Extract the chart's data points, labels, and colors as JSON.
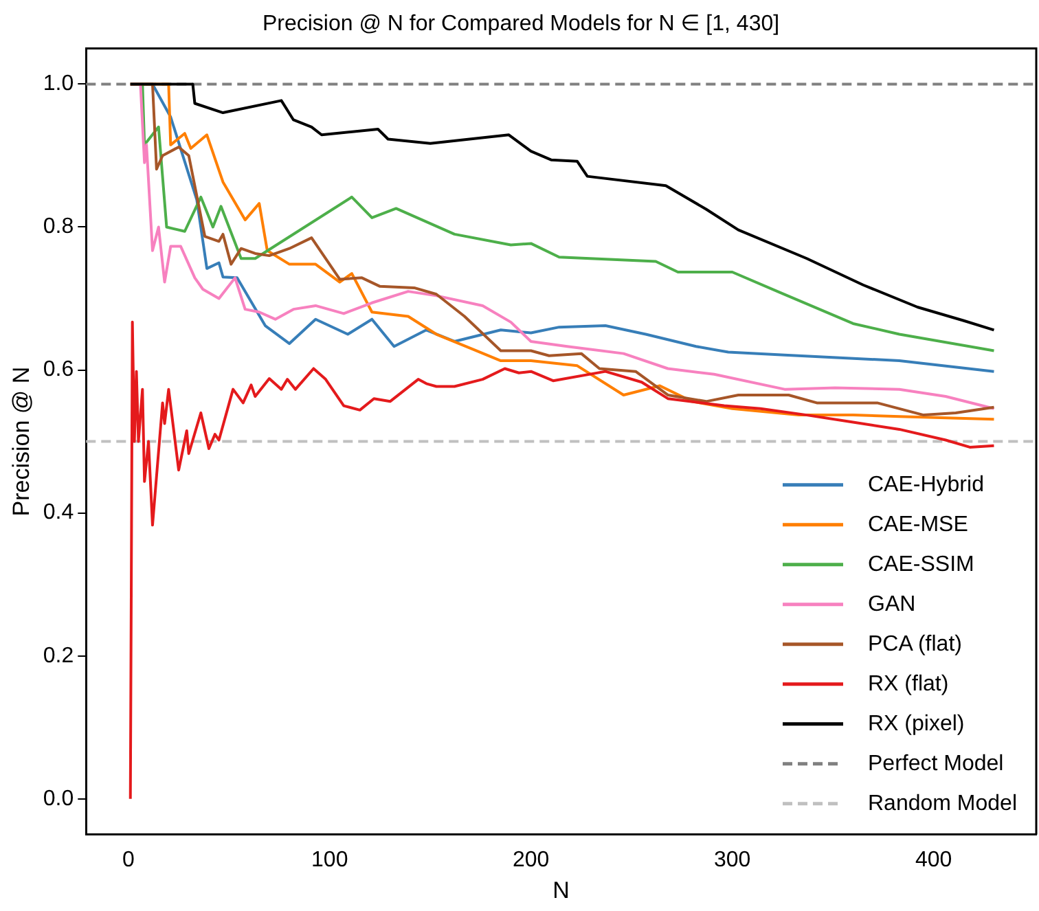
{
  "chart_data": {
    "type": "line",
    "title": "Precision @ N for Compared Models for N ∈ [1, 430]",
    "xlabel": "N",
    "ylabel": "Precision @ N",
    "xlim": [
      -21,
      451
    ],
    "xticks": [
      0,
      100,
      200,
      300,
      400
    ],
    "ylim": [
      -0.05,
      1.05
    ],
    "yticks": [
      {
        "value": 0,
        "label": "0.0"
      },
      {
        "value": 0.2,
        "label": "0.2"
      },
      {
        "value": 0.4,
        "label": "0.4"
      },
      {
        "value": 0.6,
        "label": "0.6"
      },
      {
        "value": 0.8,
        "label": "0.8"
      },
      {
        "value": 1,
        "label": "1.0"
      }
    ],
    "grid": false,
    "legend": "bottom right",
    "marker": "none",
    "line_style": "solid",
    "series": [
      {
        "name": "CAE-Hybrid",
        "color": "#377eb8",
        "x": [
          1,
          12,
          21,
          34,
          39,
          45,
          47,
          54,
          68,
          80,
          93,
          109,
          121,
          132,
          148,
          162,
          185,
          200,
          214,
          237,
          257,
          282,
          298,
          326,
          383,
          430
        ],
        "values": [
          1,
          1,
          0.954,
          0.838,
          0.742,
          0.75,
          0.73,
          0.729,
          0.662,
          0.637,
          0.671,
          0.65,
          0.671,
          0.633,
          0.656,
          0.64,
          0.656,
          0.652,
          0.66,
          0.662,
          0.65,
          0.633,
          0.625,
          0.621,
          0.613,
          0.598
        ]
      },
      {
        "name": "CAE-MSE",
        "color": "#ff7f00",
        "x": [
          1,
          20,
          21,
          28,
          31,
          39,
          47,
          58,
          65,
          69,
          80,
          93,
          105,
          111,
          121,
          139,
          153,
          185,
          200,
          223,
          246,
          264,
          280,
          300,
          333,
          360,
          383,
          430
        ],
        "values": [
          1,
          1,
          0.915,
          0.931,
          0.91,
          0.929,
          0.863,
          0.81,
          0.833,
          0.767,
          0.748,
          0.748,
          0.723,
          0.735,
          0.681,
          0.675,
          0.65,
          0.613,
          0.613,
          0.606,
          0.565,
          0.578,
          0.556,
          0.546,
          0.537,
          0.537,
          0.535,
          0.531
        ]
      },
      {
        "name": "CAE-SSIM",
        "color": "#4daf4a",
        "x": [
          1,
          7,
          8,
          15,
          19,
          28,
          36,
          42,
          46,
          56,
          63,
          111,
          121,
          133,
          162,
          190,
          200,
          214,
          262,
          273,
          300,
          324,
          360,
          383,
          430
        ],
        "values": [
          1,
          1,
          0.915,
          0.94,
          0.8,
          0.794,
          0.842,
          0.8,
          0.829,
          0.756,
          0.756,
          0.842,
          0.813,
          0.826,
          0.79,
          0.775,
          0.777,
          0.758,
          0.752,
          0.737,
          0.737,
          0.708,
          0.665,
          0.65,
          0.627
        ]
      },
      {
        "name": "GAN",
        "color": "#f781bf",
        "x": [
          1,
          6,
          8,
          9,
          12,
          15,
          18,
          21,
          26,
          33,
          37,
          45,
          53,
          58,
          65,
          73,
          82,
          93,
          107,
          121,
          139,
          153,
          176,
          190,
          200,
          218,
          246,
          268,
          291,
          326,
          351,
          383,
          406,
          430
        ],
        "values": [
          1,
          1,
          0.89,
          0.915,
          0.767,
          0.8,
          0.723,
          0.773,
          0.773,
          0.729,
          0.713,
          0.7,
          0.729,
          0.685,
          0.681,
          0.671,
          0.685,
          0.69,
          0.679,
          0.694,
          0.71,
          0.704,
          0.69,
          0.667,
          0.64,
          0.633,
          0.623,
          0.602,
          0.594,
          0.573,
          0.575,
          0.573,
          0.563,
          0.546
        ]
      },
      {
        "name": "PCA (flat)",
        "color": "#a65628",
        "x": [
          1,
          12,
          14,
          17,
          25,
          30,
          38,
          45,
          47,
          51,
          56,
          63,
          70,
          80,
          91,
          105,
          116,
          125,
          142,
          153,
          167,
          185,
          200,
          209,
          225,
          234,
          252,
          268,
          287,
          303,
          328,
          342,
          372,
          395,
          411,
          430
        ],
        "values": [
          1,
          1,
          0.881,
          0.9,
          0.912,
          0.9,
          0.787,
          0.78,
          0.79,
          0.748,
          0.77,
          0.763,
          0.76,
          0.77,
          0.785,
          0.727,
          0.729,
          0.717,
          0.715,
          0.706,
          0.675,
          0.627,
          0.627,
          0.62,
          0.623,
          0.602,
          0.598,
          0.565,
          0.556,
          0.565,
          0.565,
          0.554,
          0.554,
          0.537,
          0.54,
          0.548
        ]
      },
      {
        "name": "RX (flat)",
        "color": "#e41a1c",
        "x": [
          1,
          2,
          3,
          4,
          5,
          7,
          8,
          10,
          12,
          17,
          18,
          20,
          25,
          29,
          30,
          36,
          40,
          43,
          45,
          52,
          57,
          61,
          63,
          70,
          76,
          79,
          83,
          92,
          98,
          107,
          115,
          122,
          130,
          144,
          148,
          153,
          162,
          176,
          187,
          194,
          200,
          211,
          237,
          255,
          268,
          296,
          314,
          337,
          360,
          383,
          406,
          418,
          430
        ],
        "values": [
          0,
          0.667,
          0.5,
          0.598,
          0.5,
          0.573,
          0.444,
          0.5,
          0.383,
          0.554,
          0.525,
          0.573,
          0.46,
          0.515,
          0.483,
          0.54,
          0.49,
          0.51,
          0.502,
          0.573,
          0.554,
          0.579,
          0.563,
          0.588,
          0.573,
          0.587,
          0.573,
          0.602,
          0.587,
          0.55,
          0.544,
          0.56,
          0.556,
          0.587,
          0.581,
          0.577,
          0.577,
          0.587,
          0.602,
          0.596,
          0.598,
          0.585,
          0.598,
          0.583,
          0.56,
          0.55,
          0.546,
          0.537,
          0.527,
          0.517,
          0.502,
          0.492,
          0.494
        ]
      },
      {
        "name": "RX (pixel)",
        "color": "#000000",
        "x": [
          1,
          32,
          33,
          47,
          76,
          82,
          91,
          96,
          124,
          129,
          150,
          189,
          200,
          210,
          223,
          228,
          267,
          287,
          303,
          337,
          365,
          392,
          415,
          430
        ],
        "values": [
          1,
          1,
          0.973,
          0.96,
          0.977,
          0.95,
          0.94,
          0.929,
          0.937,
          0.923,
          0.917,
          0.929,
          0.906,
          0.894,
          0.892,
          0.871,
          0.858,
          0.825,
          0.796,
          0.756,
          0.719,
          0.688,
          0.669,
          0.656
        ]
      }
    ],
    "ref_lines": [
      {
        "axis": "y",
        "value": 1,
        "label": "Perfect Model",
        "color": "#808080",
        "line_style": "dashed"
      },
      {
        "axis": "y",
        "value": 0.5,
        "label": "Random Model",
        "color": "#c0c0c0",
        "line_style": "dashed"
      }
    ]
  }
}
